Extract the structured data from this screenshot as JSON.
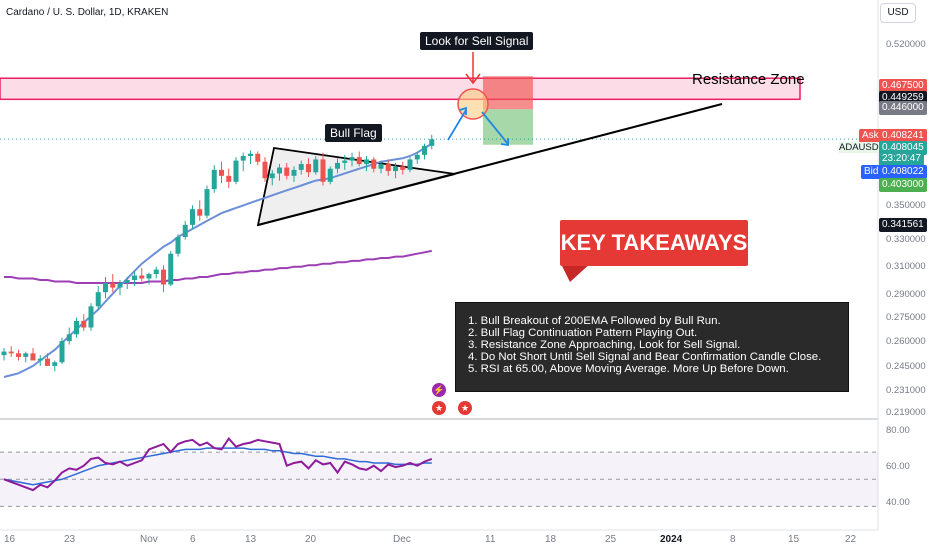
{
  "header": {
    "title": "Cardano / U. S. Dollar, 1D, KRAKEN",
    "currency": "USD"
  },
  "annotations": {
    "sell_signal": "Look for Sell Signal",
    "resistance": "Resistance Zone",
    "bull_flag": "Bull Flag",
    "key_takeaways": "KEY TAKEAWAYS"
  },
  "takeaways": [
    "1. Bull Breakout of 200EMA Followed by Bull Run.",
    "2. Bull Flag Continuation Pattern Playing Out.",
    "3. Resistance Zone Approaching, Look for Sell Signal.",
    "4. Do Not Short Until Sell Signal and Bear Confirmation Candle Close.",
    "5. RSI at 65.00, Above Moving Average. More Up Before Down."
  ],
  "price_axis": [
    "0.520000",
    "0.467500",
    "0.449259",
    "0.446000",
    "0.408241",
    "0.408045",
    "23:20:47",
    "0.408022",
    "0.403000",
    "0.350000",
    "0.341561",
    "0.330000",
    "0.310000",
    "0.290000",
    "0.275000",
    "0.260000",
    "0.245000",
    "0.231000",
    "0.219000"
  ],
  "price_tags": {
    "ask_label": "Ask",
    "ask": "0.408241",
    "symbol": "ADAUSD",
    "last": "0.408045",
    "countdown": "23:20:47",
    "bid_label": "Bid",
    "bid": "0.408022",
    "tp": "0.403000",
    "sl_top": "0.467500",
    "zone_a": "0.449259",
    "zone_b": "0.446000",
    "low": "0.341561"
  },
  "rsi_axis": [
    "80.00",
    "60.00",
    "40.00"
  ],
  "x_axis": [
    "16",
    "23",
    "Nov",
    "6",
    "13",
    "20",
    "Dec",
    "11",
    "18",
    "25",
    "2024",
    "8",
    "15",
    "22"
  ],
  "colors": {
    "up": "#26a69a",
    "down": "#ef5350",
    "ema50": "#6b8fd9",
    "ema200": "#9c3fb5",
    "rsi": "#8e1b9a",
    "rsi_ma": "#2f6bd6",
    "zone": "#f48fb1"
  },
  "chart_data": {
    "type": "candlestick",
    "y_scale": "log",
    "ylim": [
      0.219,
      0.53
    ],
    "candles": [
      [
        0.252,
        0.256,
        0.249,
        0.254
      ],
      [
        0.254,
        0.257,
        0.251,
        0.253
      ],
      [
        0.253,
        0.255,
        0.249,
        0.251
      ],
      [
        0.251,
        0.254,
        0.248,
        0.253
      ],
      [
        0.253,
        0.256,
        0.25,
        0.249
      ],
      [
        0.249,
        0.252,
        0.246,
        0.25
      ],
      [
        0.25,
        0.253,
        0.247,
        0.246
      ],
      [
        0.246,
        0.249,
        0.243,
        0.248
      ],
      [
        0.248,
        0.262,
        0.247,
        0.26
      ],
      [
        0.26,
        0.268,
        0.258,
        0.264
      ],
      [
        0.264,
        0.274,
        0.262,
        0.272
      ],
      [
        0.272,
        0.276,
        0.266,
        0.268
      ],
      [
        0.268,
        0.283,
        0.266,
        0.281
      ],
      [
        0.281,
        0.294,
        0.279,
        0.29
      ],
      [
        0.29,
        0.3,
        0.286,
        0.296
      ],
      [
        0.296,
        0.302,
        0.29,
        0.293
      ],
      [
        0.293,
        0.298,
        0.288,
        0.296
      ],
      [
        0.296,
        0.3,
        0.292,
        0.298
      ],
      [
        0.298,
        0.304,
        0.294,
        0.301
      ],
      [
        0.301,
        0.306,
        0.297,
        0.299
      ],
      [
        0.299,
        0.303,
        0.295,
        0.302
      ],
      [
        0.302,
        0.307,
        0.299,
        0.305
      ],
      [
        0.305,
        0.308,
        0.29,
        0.295
      ],
      [
        0.295,
        0.318,
        0.294,
        0.316
      ],
      [
        0.316,
        0.33,
        0.314,
        0.328
      ],
      [
        0.328,
        0.34,
        0.326,
        0.337
      ],
      [
        0.337,
        0.352,
        0.334,
        0.349
      ],
      [
        0.349,
        0.356,
        0.34,
        0.344
      ],
      [
        0.344,
        0.368,
        0.342,
        0.365
      ],
      [
        0.365,
        0.385,
        0.362,
        0.381
      ],
      [
        0.381,
        0.388,
        0.37,
        0.376
      ],
      [
        0.376,
        0.382,
        0.366,
        0.371
      ],
      [
        0.371,
        0.392,
        0.369,
        0.389
      ],
      [
        0.389,
        0.396,
        0.38,
        0.393
      ],
      [
        0.393,
        0.398,
        0.386,
        0.395
      ],
      [
        0.395,
        0.397,
        0.385,
        0.388
      ],
      [
        0.388,
        0.392,
        0.371,
        0.374
      ],
      [
        0.374,
        0.381,
        0.368,
        0.378
      ],
      [
        0.378,
        0.386,
        0.372,
        0.383
      ],
      [
        0.383,
        0.387,
        0.373,
        0.376
      ],
      [
        0.376,
        0.384,
        0.371,
        0.381
      ],
      [
        0.381,
        0.389,
        0.377,
        0.386
      ],
      [
        0.386,
        0.391,
        0.375,
        0.379
      ],
      [
        0.379,
        0.393,
        0.377,
        0.39
      ],
      [
        0.39,
        0.396,
        0.368,
        0.371
      ],
      [
        0.371,
        0.384,
        0.369,
        0.382
      ],
      [
        0.382,
        0.391,
        0.378,
        0.387
      ],
      [
        0.387,
        0.394,
        0.381,
        0.389
      ],
      [
        0.389,
        0.396,
        0.384,
        0.392
      ],
      [
        0.392,
        0.397,
        0.384,
        0.386
      ],
      [
        0.386,
        0.393,
        0.38,
        0.39
      ],
      [
        0.39,
        0.392,
        0.379,
        0.382
      ],
      [
        0.382,
        0.389,
        0.378,
        0.386
      ],
      [
        0.386,
        0.39,
        0.376,
        0.38
      ],
      [
        0.38,
        0.387,
        0.374,
        0.384
      ],
      [
        0.384,
        0.388,
        0.377,
        0.381
      ],
      [
        0.381,
        0.392,
        0.379,
        0.39
      ],
      [
        0.39,
        0.397,
        0.386,
        0.394
      ],
      [
        0.394,
        0.404,
        0.39,
        0.402
      ],
      [
        0.402,
        0.412,
        0.399,
        0.408
      ]
    ],
    "ema50": [
      0.24,
      0.241,
      0.242,
      0.244,
      0.246,
      0.249,
      0.252,
      0.255,
      0.259,
      0.263,
      0.267,
      0.271,
      0.275,
      0.279,
      0.284,
      0.289,
      0.294,
      0.299,
      0.304,
      0.309,
      0.313,
      0.317,
      0.321,
      0.324,
      0.328,
      0.331,
      0.334,
      0.337,
      0.34,
      0.343,
      0.346,
      0.348,
      0.35,
      0.352,
      0.354,
      0.356,
      0.358,
      0.36,
      0.362,
      0.364,
      0.366,
      0.368,
      0.37,
      0.372,
      0.373,
      0.374,
      0.376,
      0.378,
      0.38,
      0.382,
      0.384,
      0.386,
      0.388,
      0.389,
      0.39,
      0.391,
      0.393,
      0.396,
      0.4,
      0.404
    ],
    "ema200": [
      0.3,
      0.3,
      0.299,
      0.299,
      0.299,
      0.298,
      0.298,
      0.297,
      0.297,
      0.297,
      0.296,
      0.296,
      0.296,
      0.296,
      0.296,
      0.296,
      0.296,
      0.296,
      0.296,
      0.296,
      0.297,
      0.297,
      0.297,
      0.298,
      0.298,
      0.299,
      0.299,
      0.3,
      0.3,
      0.301,
      0.302,
      0.302,
      0.303,
      0.303,
      0.304,
      0.304,
      0.305,
      0.305,
      0.306,
      0.306,
      0.307,
      0.307,
      0.308,
      0.308,
      0.309,
      0.309,
      0.31,
      0.31,
      0.311,
      0.311,
      0.312,
      0.312,
      0.313,
      0.313,
      0.314,
      0.314,
      0.315,
      0.316,
      0.317,
      0.318
    ],
    "rsi": [
      50,
      48,
      46,
      44,
      42,
      46,
      44,
      49,
      55,
      58,
      57,
      60,
      65,
      66,
      62,
      61,
      63,
      60,
      62,
      64,
      72,
      74,
      76,
      70,
      76,
      78,
      79,
      75,
      77,
      73,
      72,
      80,
      74,
      76,
      77,
      79,
      78,
      77,
      76,
      60,
      62,
      63,
      58,
      64,
      61,
      62,
      55,
      63,
      61,
      58,
      57,
      60,
      56,
      61,
      59,
      60,
      62,
      60,
      63,
      65
    ],
    "rsi_ma": [
      50,
      49,
      48,
      47,
      46,
      47,
      48,
      49,
      50,
      52,
      54,
      56,
      58,
      60,
      61,
      62,
      63,
      64,
      65,
      66,
      67,
      68,
      69,
      70,
      71,
      72,
      72,
      72,
      73,
      73,
      73,
      73,
      73,
      73,
      72,
      72,
      72,
      71,
      71,
      70,
      69,
      69,
      68,
      67,
      67,
      66,
      65,
      65,
      64,
      63,
      63,
      62,
      62,
      62,
      61,
      61,
      61,
      61,
      62,
      62
    ],
    "rsi_ylim": [
      20,
      90
    ],
    "levels": {
      "resistance_zone": [
        0.446,
        0.4675
      ],
      "ask": 0.408241,
      "last": 0.408045,
      "bid": 0.408022,
      "target": 0.403,
      "low_level": 0.341561
    }
  }
}
